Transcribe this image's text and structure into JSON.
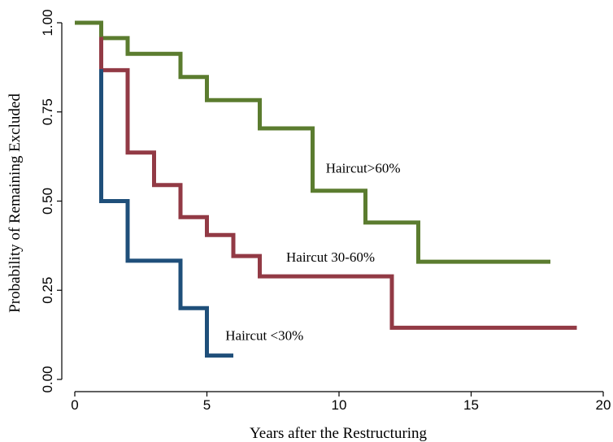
{
  "chart_data": {
    "type": "line",
    "step": true,
    "title": "",
    "xlabel": "Years after the Restructuring",
    "ylabel": "Probability of Remaining Excluded",
    "xlim": [
      0,
      20
    ],
    "ylim": [
      0,
      1
    ],
    "xticks": [
      "0",
      "5",
      "10",
      "15",
      "20"
    ],
    "yticks": [
      "0.00",
      "0.25",
      "0.50",
      "0.75",
      "1.00"
    ],
    "grid": false,
    "legend": "none",
    "series": [
      {
        "name": "Haircut>60%",
        "color": "#5b7c2f",
        "x": [
          0,
          1,
          2,
          4,
          5,
          7,
          9,
          11,
          13,
          18
        ],
        "y": [
          1.0,
          0.957,
          0.913,
          0.848,
          0.783,
          0.704,
          0.529,
          0.44,
          0.33,
          0.33
        ]
      },
      {
        "name": "Haircut 30-60%",
        "color": "#923a45",
        "x": [
          1,
          1,
          2,
          3,
          4,
          5,
          6,
          7,
          12,
          19
        ],
        "y": [
          0.96,
          0.867,
          0.636,
          0.545,
          0.455,
          0.405,
          0.346,
          0.289,
          0.145,
          0.145
        ]
      },
      {
        "name": "Haircut <30%",
        "color": "#1f4f7a",
        "x": [
          1,
          1,
          2,
          4,
          5,
          6
        ],
        "y": [
          0.87,
          0.5,
          0.333,
          0.2,
          0.067,
          0.067
        ]
      }
    ],
    "annotations": [
      {
        "text": "Haircut>60%",
        "x": 9.5,
        "y": 0.58
      },
      {
        "text": "Haircut 30-60%",
        "x": 8.0,
        "y": 0.33
      },
      {
        "text": "Haircut <30%",
        "x": 5.7,
        "y": 0.11
      }
    ]
  }
}
